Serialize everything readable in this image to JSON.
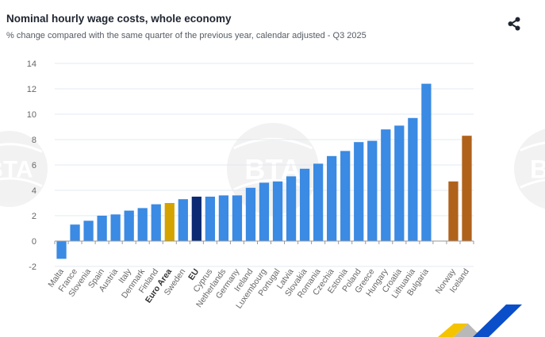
{
  "header": {
    "title": "Nominal hourly wage costs, whole economy",
    "subtitle": "% change compared with the same quarter of the previous year, calendar adjusted - Q3 2025",
    "share_icon": "share-icon"
  },
  "watermark": {
    "text": "BTA"
  },
  "colors": {
    "country": "#3b8ae3",
    "euro_area": "#d4a300",
    "eu": "#0b2a73",
    "efta": "#b0621b",
    "grid": "#e3e8f0",
    "axis_text": "#666666"
  },
  "chart_data": {
    "type": "bar",
    "title": "Nominal hourly wage costs, whole economy",
    "subtitle": "% change compared with the same quarter of the previous year, calendar adjusted - Q3 2025",
    "xlabel": "",
    "ylabel": "",
    "ylim": [
      -2,
      14
    ],
    "yticks": [
      -2,
      0,
      2,
      4,
      6,
      8,
      10,
      12,
      14
    ],
    "grid": true,
    "legend": "none",
    "categories": [
      "Malta",
      "France",
      "Slovenia",
      "Spain",
      "Austria",
      "Italy",
      "Denmark",
      "Finland",
      "Euro Area",
      "Sweden",
      "EU",
      "Cyprus",
      "Netherlands",
      "Germany",
      "Ireland",
      "Luxembourg",
      "Portugal",
      "Latvia",
      "Slovakia",
      "Romania",
      "Czechia",
      "Estonia",
      "Poland",
      "Greece",
      "Hungary",
      "Croatia",
      "Lithuania",
      "Bulgaria",
      "",
      "Norway",
      "Iceland"
    ],
    "values": [
      -1.4,
      1.3,
      1.6,
      2.0,
      2.1,
      2.4,
      2.6,
      2.9,
      3.0,
      3.3,
      3.5,
      3.5,
      3.6,
      3.6,
      4.2,
      4.6,
      4.7,
      5.1,
      5.7,
      6.1,
      6.7,
      7.1,
      7.8,
      7.9,
      8.8,
      9.1,
      9.7,
      12.4,
      null,
      4.7,
      8.3
    ],
    "groups": [
      "country",
      "country",
      "country",
      "country",
      "country",
      "country",
      "country",
      "country",
      "euro_area",
      "country",
      "eu",
      "country",
      "country",
      "country",
      "country",
      "country",
      "country",
      "country",
      "country",
      "country",
      "country",
      "country",
      "country",
      "country",
      "country",
      "country",
      "country",
      "country",
      "gap",
      "efta",
      "efta"
    ],
    "bold_labels": [
      "Euro Area",
      "EU"
    ]
  }
}
